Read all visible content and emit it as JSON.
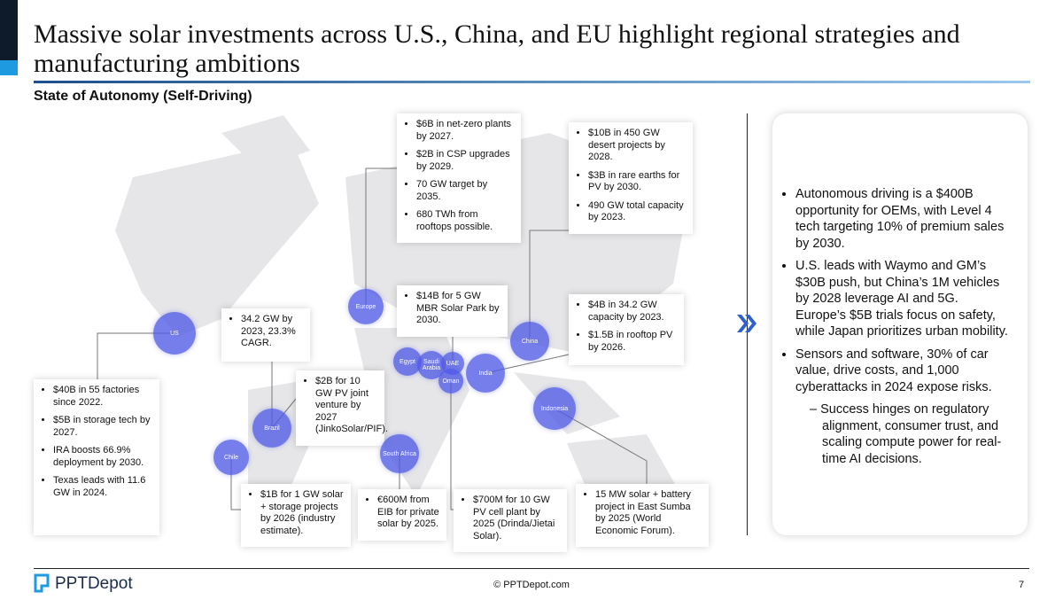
{
  "header": {
    "title": "Massive solar investments across U.S., China, and EU highlight regional strategies and manufacturing ambitions",
    "subtitle": "State of Autonomy (Self-Driving)"
  },
  "map": {
    "regions": [
      "US",
      "Europe",
      "China",
      "Egypt",
      "Saudi Arabia",
      "UAE",
      "Oman",
      "India",
      "Indonesia",
      "Brazil",
      "Chile",
      "South Africa"
    ]
  },
  "callouts": [
    {
      "bullets": [
        "$40B in 55 factories since 2022.",
        "$5B in storage tech by 2027.",
        "IRA boosts 66.9% deployment by 2030.",
        "Texas leads with 11.6 GW in 2024."
      ]
    },
    {
      "bullets": [
        "34.2 GW by 2023, 23.3% CAGR."
      ]
    },
    {
      "bullets": [
        "$2B for 10 GW PV joint venture by 2027 (JinkoSolar/PIF)."
      ]
    },
    {
      "bullets": [
        "$6B in net-zero plants by 2027.",
        "$2B in CSP upgrades by 2029.",
        "70 GW target by 2035.",
        "680 TWh from rooftops possible."
      ]
    },
    {
      "bullets": [
        "$10B in 450 GW desert projects by 2028.",
        "$3B in rare earths for PV by 2030.",
        "490 GW total capacity by 2023."
      ]
    },
    {
      "bullets": [
        "$14B for 5 GW MBR Solar Park by 2030."
      ]
    },
    {
      "bullets": [
        "$4B in 34.2 GW capacity by 2023.",
        "$1.5B in rooftop PV by 2026."
      ]
    },
    {
      "bullets": [
        "$1B for 1 GW solar + storage projects by 2026 (industry estimate)."
      ]
    },
    {
      "bullets": [
        "€600M from EIB for private solar by 2025."
      ]
    },
    {
      "bullets": [
        "$700M for 10 GW PV cell plant by 2025 (Drinda/Jietai Solar)."
      ]
    },
    {
      "bullets": [
        "15 MW solar + battery project in East Sumba by 2025 (World Economic Forum)."
      ]
    }
  ],
  "side_panel": {
    "bullets": [
      "Autonomous driving is a $400B opportunity for OEMs, with Level 4 tech targeting 10% of premium sales by 2030.",
      "U.S. leads with Waymo and GM’s $30B push, but China’s 1M vehicles by 2028 leverage AI and 5G. Europe’s $5B trials focus on safety, while Japan prioritizes urban mobility.",
      "Sensors and software, 30% of car value, drive costs, and 1,000 cyberattacks in 2024 expose risks."
    ],
    "sub_bullets": [
      "– Success hinges on regulatory alignment, consumer trust, and scaling compute power for real-time AI decisions."
    ]
  },
  "footer": {
    "logo": "PPTDepot",
    "copyright": "© PPTDepot.com",
    "page": "7"
  }
}
